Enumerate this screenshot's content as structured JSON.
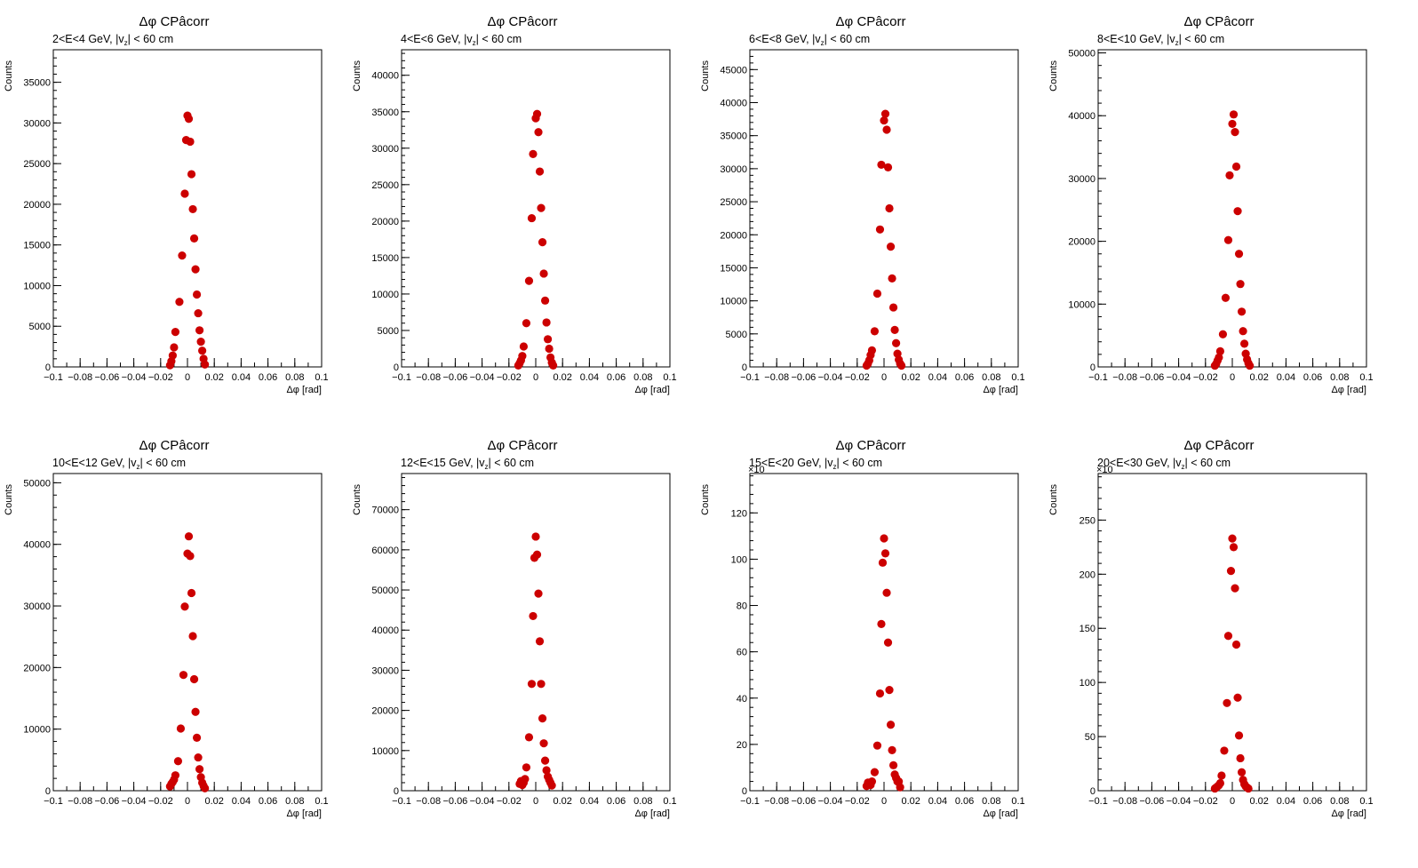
{
  "chart_data": [
    {
      "type": "scatter",
      "title": "Δφ CPâcorr",
      "subtitle": "2<E<4 GeV, |v_z| < 60 cm",
      "xlabel": "Δφ  [rad]",
      "ylabel": "Counts",
      "exponent_label": "",
      "xlim": [
        -0.1,
        0.1
      ],
      "ylim": [
        0,
        39000
      ],
      "xticks": [
        -0.1,
        -0.08,
        -0.06,
        -0.04,
        -0.02,
        0,
        0.02,
        0.04,
        0.06,
        0.08,
        0.1
      ],
      "xtick_labels": [
        "−0.1",
        "−0.08",
        "−0.06",
        "−0.04",
        "−0.02",
        "0",
        "0.02",
        "0.04",
        "0.06",
        "0.08",
        "0.1"
      ],
      "yticks": [
        0,
        5000,
        10000,
        15000,
        20000,
        25000,
        30000,
        35000
      ],
      "marker_color": "#cc0000",
      "grid": false,
      "points": [
        [
          -0.013,
          200
        ],
        [
          -0.012,
          700
        ],
        [
          -0.011,
          1400
        ],
        [
          -0.01,
          2400
        ],
        [
          -0.009,
          4300
        ],
        [
          -0.006,
          8000
        ],
        [
          -0.004,
          13700
        ],
        [
          -0.002,
          21300
        ],
        [
          -0.001,
          27900
        ],
        [
          0,
          30900
        ],
        [
          0.001,
          30500
        ],
        [
          0.002,
          27700
        ],
        [
          0.003,
          23700
        ],
        [
          0.004,
          19400
        ],
        [
          0.005,
          15800
        ],
        [
          0.006,
          12000
        ],
        [
          0.007,
          8900
        ],
        [
          0.008,
          6600
        ],
        [
          0.009,
          4500
        ],
        [
          0.01,
          3100
        ],
        [
          0.011,
          2000
        ],
        [
          0.012,
          1000
        ],
        [
          0.013,
          300
        ]
      ]
    },
    {
      "type": "scatter",
      "title": "Δφ CPâcorr",
      "subtitle": "4<E<6 GeV, |v_z| < 60 cm",
      "xlabel": "Δφ  [rad]",
      "ylabel": "Counts",
      "exponent_label": "",
      "xlim": [
        -0.1,
        0.1
      ],
      "ylim": [
        0,
        43500
      ],
      "xticks": [
        -0.1,
        -0.08,
        -0.06,
        -0.04,
        -0.02,
        0,
        0.02,
        0.04,
        0.06,
        0.08,
        0.1
      ],
      "xtick_labels": [
        "−0.1",
        "−0.08",
        "−0.06",
        "−0.04",
        "−0.02",
        "0",
        "0.02",
        "0.04",
        "0.06",
        "0.08",
        "0.1"
      ],
      "yticks": [
        0,
        5000,
        10000,
        15000,
        20000,
        25000,
        30000,
        35000,
        40000
      ],
      "marker_color": "#cc0000",
      "grid": false,
      "points": [
        [
          -0.013,
          200
        ],
        [
          -0.012,
          500
        ],
        [
          -0.011,
          900
        ],
        [
          -0.01,
          1500
        ],
        [
          -0.009,
          2800
        ],
        [
          -0.007,
          6000
        ],
        [
          -0.005,
          11800
        ],
        [
          -0.003,
          20400
        ],
        [
          -0.002,
          29200
        ],
        [
          0,
          34100
        ],
        [
          0.001,
          34700
        ],
        [
          0.002,
          32200
        ],
        [
          0.003,
          26800
        ],
        [
          0.004,
          21800
        ],
        [
          0.005,
          17100
        ],
        [
          0.006,
          12800
        ],
        [
          0.007,
          9100
        ],
        [
          0.008,
          6100
        ],
        [
          0.009,
          3800
        ],
        [
          0.01,
          2500
        ],
        [
          0.011,
          1300
        ],
        [
          0.012,
          600
        ],
        [
          0.013,
          200
        ]
      ]
    },
    {
      "type": "scatter",
      "title": "Δφ CPâcorr",
      "subtitle": "6<E<8 GeV, |v_z| < 60 cm",
      "xlabel": "Δφ  [rad]",
      "ylabel": "Counts",
      "exponent_label": "",
      "xlim": [
        -0.1,
        0.1
      ],
      "ylim": [
        0,
        48000
      ],
      "xticks": [
        -0.1,
        -0.08,
        -0.06,
        -0.04,
        -0.02,
        0,
        0.02,
        0.04,
        0.06,
        0.08,
        0.1
      ],
      "xtick_labels": [
        "−0.1",
        "−0.08",
        "−0.06",
        "−0.04",
        "−0.02",
        "0",
        "0.02",
        "0.04",
        "0.06",
        "0.08",
        "0.1"
      ],
      "yticks": [
        0,
        5000,
        10000,
        15000,
        20000,
        25000,
        30000,
        35000,
        40000,
        45000
      ],
      "marker_color": "#cc0000",
      "grid": false,
      "points": [
        [
          -0.013,
          200
        ],
        [
          -0.012,
          500
        ],
        [
          -0.011,
          1000
        ],
        [
          -0.01,
          1800
        ],
        [
          -0.009,
          2500
        ],
        [
          -0.007,
          5400
        ],
        [
          -0.005,
          11100
        ],
        [
          -0.003,
          20800
        ],
        [
          -0.002,
          30600
        ],
        [
          0,
          37300
        ],
        [
          0.001,
          38300
        ],
        [
          0.002,
          35900
        ],
        [
          0.003,
          30200
        ],
        [
          0.004,
          24000
        ],
        [
          0.005,
          18200
        ],
        [
          0.006,
          13400
        ],
        [
          0.007,
          9000
        ],
        [
          0.008,
          5600
        ],
        [
          0.009,
          3600
        ],
        [
          0.01,
          2000
        ],
        [
          0.011,
          1100
        ],
        [
          0.012,
          500
        ],
        [
          0.013,
          200
        ]
      ]
    },
    {
      "type": "scatter",
      "title": "Δφ CPâcorr",
      "subtitle": "8<E<10 GeV, |v_z| < 60 cm",
      "xlabel": "Δφ  [rad]",
      "ylabel": "Counts",
      "exponent_label": "",
      "xlim": [
        -0.1,
        0.1
      ],
      "ylim": [
        0,
        50500
      ],
      "xticks": [
        -0.1,
        -0.08,
        -0.06,
        -0.04,
        -0.02,
        0,
        0.02,
        0.04,
        0.06,
        0.08,
        0.1
      ],
      "xtick_labels": [
        "−0.1",
        "−0.08",
        "−0.06",
        "−0.04",
        "−0.02",
        "0",
        "0.02",
        "0.04",
        "0.06",
        "0.08",
        "0.1"
      ],
      "yticks": [
        0,
        10000,
        20000,
        30000,
        40000,
        50000
      ],
      "marker_color": "#cc0000",
      "grid": false,
      "points": [
        [
          -0.013,
          200
        ],
        [
          -0.012,
          500
        ],
        [
          -0.011,
          1000
        ],
        [
          -0.01,
          1500
        ],
        [
          -0.009,
          2500
        ],
        [
          -0.007,
          5200
        ],
        [
          -0.005,
          11000
        ],
        [
          -0.003,
          20200
        ],
        [
          -0.002,
          30500
        ],
        [
          0,
          38700
        ],
        [
          0.001,
          40200
        ],
        [
          0.002,
          37400
        ],
        [
          0.003,
          31900
        ],
        [
          0.004,
          24800
        ],
        [
          0.005,
          18000
        ],
        [
          0.006,
          13200
        ],
        [
          0.007,
          8800
        ],
        [
          0.008,
          5700
        ],
        [
          0.009,
          3700
        ],
        [
          0.01,
          2100
        ],
        [
          0.011,
          1200
        ],
        [
          0.012,
          600
        ],
        [
          0.013,
          200
        ]
      ]
    },
    {
      "type": "scatter",
      "title": "Δφ CPâcorr",
      "subtitle": "10<E<12 GeV, |v_z| < 60 cm",
      "xlabel": "Δφ  [rad]",
      "ylabel": "Counts",
      "exponent_label": "",
      "xlim": [
        -0.1,
        0.1
      ],
      "ylim": [
        0,
        51500
      ],
      "xticks": [
        -0.1,
        -0.08,
        -0.06,
        -0.04,
        -0.02,
        0,
        0.02,
        0.04,
        0.06,
        0.08,
        0.1
      ],
      "xtick_labels": [
        "−0.1",
        "−0.08",
        "−0.06",
        "−0.04",
        "−0.02",
        "0",
        "0.02",
        "0.04",
        "0.06",
        "0.08",
        "0.1"
      ],
      "yticks": [
        0,
        10000,
        20000,
        30000,
        40000,
        50000
      ],
      "marker_color": "#cc0000",
      "grid": false,
      "points": [
        [
          -0.013,
          700
        ],
        [
          -0.012,
          1100
        ],
        [
          -0.011,
          1400
        ],
        [
          -0.01,
          1800
        ],
        [
          -0.009,
          2500
        ],
        [
          -0.007,
          4800
        ],
        [
          -0.005,
          10100
        ],
        [
          -0.003,
          18800
        ],
        [
          -0.002,
          29900
        ],
        [
          0,
          38500
        ],
        [
          0.001,
          41300
        ],
        [
          0.002,
          38100
        ],
        [
          0.003,
          32100
        ],
        [
          0.004,
          25100
        ],
        [
          0.005,
          18100
        ],
        [
          0.006,
          12800
        ],
        [
          0.007,
          8600
        ],
        [
          0.008,
          5400
        ],
        [
          0.009,
          3500
        ],
        [
          0.01,
          2200
        ],
        [
          0.011,
          1300
        ],
        [
          0.012,
          800
        ],
        [
          0.013,
          400
        ]
      ]
    },
    {
      "type": "scatter",
      "title": "Δφ CPâcorr",
      "subtitle": "12<E<15 GeV, |v_z| < 60 cm",
      "xlabel": "Δφ  [rad]",
      "ylabel": "Counts",
      "exponent_label": "",
      "xlim": [
        -0.1,
        0.1
      ],
      "ylim": [
        0,
        79000
      ],
      "xticks": [
        -0.1,
        -0.08,
        -0.06,
        -0.04,
        -0.02,
        0,
        0.02,
        0.04,
        0.06,
        0.08,
        0.1
      ],
      "xtick_labels": [
        "−0.1",
        "−0.08",
        "−0.06",
        "−0.04",
        "−0.02",
        "0",
        "0.02",
        "0.04",
        "0.06",
        "0.08",
        "0.1"
      ],
      "yticks": [
        0,
        10000,
        20000,
        30000,
        40000,
        50000,
        60000,
        70000
      ],
      "marker_color": "#cc0000",
      "grid": false,
      "points": [
        [
          -0.012,
          1700
        ],
        [
          -0.011,
          2400
        ],
        [
          -0.01,
          1400
        ],
        [
          -0.009,
          2000
        ],
        [
          -0.008,
          2900
        ],
        [
          -0.007,
          5800
        ],
        [
          -0.005,
          13300
        ],
        [
          -0.003,
          26600
        ],
        [
          -0.002,
          43500
        ],
        [
          -0.001,
          58000
        ],
        [
          0,
          63300
        ],
        [
          0.001,
          58800
        ],
        [
          0.002,
          49100
        ],
        [
          0.003,
          37200
        ],
        [
          0.004,
          26600
        ],
        [
          0.005,
          18000
        ],
        [
          0.006,
          11800
        ],
        [
          0.007,
          7500
        ],
        [
          0.008,
          5100
        ],
        [
          0.009,
          3500
        ],
        [
          0.01,
          2700
        ],
        [
          0.011,
          2000
        ],
        [
          0.012,
          1300
        ]
      ]
    },
    {
      "type": "scatter",
      "title": "Δφ CPâcorr",
      "subtitle": "15<E<20 GeV, |v_z| < 60 cm",
      "xlabel": "Δφ  [rad]",
      "ylabel": "Counts",
      "exponent_label": "×10",
      "xlim": [
        -0.1,
        0.1
      ],
      "ylim": [
        0,
        137
      ],
      "xticks": [
        -0.1,
        -0.08,
        -0.06,
        -0.04,
        -0.02,
        0,
        0.02,
        0.04,
        0.06,
        0.08,
        0.1
      ],
      "xtick_labels": [
        "−0.1",
        "−0.08",
        "−0.06",
        "−0.04",
        "−0.02",
        "0",
        "0.02",
        "0.04",
        "0.06",
        "0.08",
        "0.1"
      ],
      "yticks": [
        0,
        20,
        40,
        60,
        80,
        100,
        120
      ],
      "marker_color": "#cc0000",
      "grid": false,
      "points": [
        [
          -0.013,
          2
        ],
        [
          -0.012,
          3.5
        ],
        [
          -0.011,
          3
        ],
        [
          -0.01,
          2.5
        ],
        [
          -0.009,
          4
        ],
        [
          -0.007,
          8
        ],
        [
          -0.005,
          19.5
        ],
        [
          -0.003,
          42
        ],
        [
          -0.002,
          72
        ],
        [
          -0.001,
          98.5
        ],
        [
          0,
          109
        ],
        [
          0.001,
          102.5
        ],
        [
          0.002,
          85.5
        ],
        [
          0.003,
          64
        ],
        [
          0.004,
          43.5
        ],
        [
          0.005,
          28.5
        ],
        [
          0.006,
          17.5
        ],
        [
          0.007,
          11
        ],
        [
          0.008,
          7
        ],
        [
          0.009,
          5.5
        ],
        [
          0.01,
          4
        ],
        [
          0.011,
          4
        ],
        [
          0.012,
          1.5
        ]
      ]
    },
    {
      "type": "scatter",
      "title": "Δφ CPâcorr",
      "subtitle": "20<E<30 GeV, |v_z| < 60 cm",
      "xlabel": "Δφ  [rad]",
      "ylabel": "Counts",
      "exponent_label": "×10",
      "xlim": [
        -0.1,
        0.1
      ],
      "ylim": [
        0,
        293
      ],
      "xticks": [
        -0.1,
        -0.08,
        -0.06,
        -0.04,
        -0.02,
        0,
        0.02,
        0.04,
        0.06,
        0.08,
        0.1
      ],
      "xtick_labels": [
        "−0.1",
        "−0.08",
        "−0.06",
        "−0.04",
        "−0.02",
        "0",
        "0.02",
        "0.04",
        "0.06",
        "0.08",
        "0.1"
      ],
      "yticks": [
        0,
        50,
        100,
        150,
        200,
        250
      ],
      "marker_color": "#cc0000",
      "grid": false,
      "points": [
        [
          -0.013,
          2
        ],
        [
          -0.012,
          3
        ],
        [
          -0.011,
          4
        ],
        [
          -0.01,
          5
        ],
        [
          -0.009,
          7
        ],
        [
          -0.008,
          14
        ],
        [
          -0.006,
          37
        ],
        [
          -0.004,
          81
        ],
        [
          -0.003,
          143
        ],
        [
          -0.001,
          203
        ],
        [
          0,
          233
        ],
        [
          0.001,
          225
        ],
        [
          0.002,
          187
        ],
        [
          0.003,
          135
        ],
        [
          0.004,
          86
        ],
        [
          0.005,
          51
        ],
        [
          0.006,
          30
        ],
        [
          0.007,
          17
        ],
        [
          0.008,
          10
        ],
        [
          0.009,
          6
        ],
        [
          0.01,
          4
        ],
        [
          0.011,
          3
        ],
        [
          0.012,
          2
        ]
      ]
    }
  ]
}
